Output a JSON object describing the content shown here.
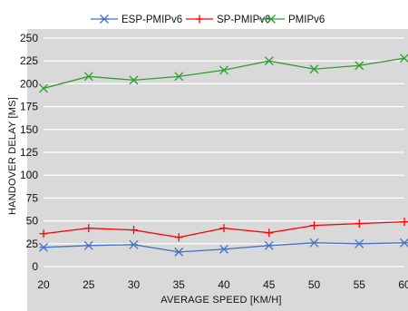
{
  "chart_data": {
    "type": "line",
    "title": "",
    "xlabel": "AVERAGE SPEED [KM/H]",
    "ylabel": "HANDOVER DELAY [MS]",
    "x": [
      20,
      25,
      30,
      35,
      40,
      45,
      50,
      55,
      60
    ],
    "xlim": [
      20,
      60
    ],
    "ylim": [
      0,
      250
    ],
    "yticks": [
      0,
      25,
      50,
      75,
      100,
      125,
      150,
      175,
      200,
      225,
      250
    ],
    "grid": true,
    "legend_position": "top",
    "series": [
      {
        "name": "ESP-PMIPv6",
        "color": "#4472C4",
        "marker": "asterisk",
        "values": [
          21,
          23,
          24,
          16,
          19,
          23,
          26,
          25,
          26
        ]
      },
      {
        "name": "SP-PMIPv6",
        "color": "#FF0000",
        "marker": "plus",
        "values": [
          36,
          42,
          40,
          32,
          42,
          37,
          45,
          47,
          49
        ]
      },
      {
        "name": "PMIPv6",
        "color": "#2E9E2E",
        "marker": "x",
        "values": [
          195,
          208,
          204,
          208,
          215,
          225,
          216,
          220,
          228
        ]
      }
    ]
  },
  "colors": {
    "background": "#ffffff",
    "plot_area": "#D9D9D9",
    "grid": "#ffffff"
  }
}
